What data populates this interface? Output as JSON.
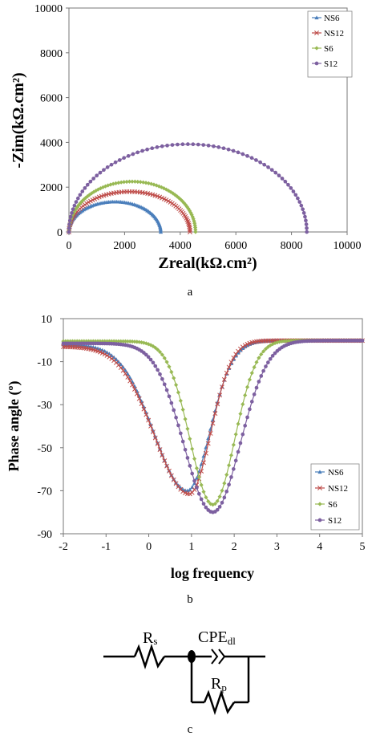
{
  "chart_data": [
    {
      "type": "scatter",
      "panel_label": "a",
      "xlabel": "Zreal(kΩ.cm²)",
      "ylabel": "-Zim(kΩ.cm²)",
      "xlim": [
        0,
        10000
      ],
      "ylim": [
        0,
        10000
      ],
      "xticks": [
        "0",
        "2000",
        "4000",
        "6000",
        "8000",
        "10000"
      ],
      "yticks": [
        "0",
        "2000",
        "4000",
        "6000",
        "8000",
        "10000"
      ],
      "grid": false,
      "legend_position": "top-right",
      "series": [
        {
          "name": "NS6",
          "color": "#4a7ebb",
          "marker": "triangle",
          "x_start": 0,
          "x_end": 3300,
          "peak_y": 1350
        },
        {
          "name": "NS12",
          "color": "#be4b48",
          "marker": "cross",
          "x_start": 0,
          "x_end": 4350,
          "peak_y": 1800
        },
        {
          "name": "S6",
          "color": "#98b954",
          "marker": "diamond",
          "x_start": 0,
          "x_end": 4550,
          "peak_y": 2250
        },
        {
          "name": "S12",
          "color": "#7d60a0",
          "marker": "circle",
          "x_start": 0,
          "x_end": 8550,
          "peak_y": 3920
        }
      ]
    },
    {
      "type": "line",
      "panel_label": "b",
      "xlabel": "log frequency",
      "ylabel": "Phase angle (º)",
      "xlim": [
        -2,
        5
      ],
      "ylim": [
        -90,
        10
      ],
      "xticks": [
        "-2",
        "-1",
        "0",
        "1",
        "2",
        "3",
        "4",
        "5"
      ],
      "yticks": [
        "10",
        "-10",
        "-30",
        "-50",
        "-70",
        "-90"
      ],
      "grid": false,
      "legend_position": "bottom-right",
      "series": [
        {
          "name": "NS6",
          "color": "#4a7ebb",
          "marker": "triangle",
          "start_y": -2,
          "min_y": -70,
          "min_x": 0.9,
          "end_y": -0.3,
          "width_low": 1.1,
          "width_high": 0.75
        },
        {
          "name": "NS12",
          "color": "#be4b48",
          "marker": "cross",
          "start_y": -3,
          "min_y": -71.5,
          "min_x": 0.95,
          "end_y": -0.2,
          "width_low": 1.15,
          "width_high": 0.7
        },
        {
          "name": "S6",
          "color": "#98b954",
          "marker": "diamond",
          "start_y": -0.5,
          "min_y": -76.5,
          "min_x": 1.5,
          "end_y": -0.1,
          "width_low": 0.75,
          "width_high": 0.72
        },
        {
          "name": "S12",
          "color": "#7d60a0",
          "marker": "circle",
          "start_y": -1.5,
          "min_y": -80,
          "min_x": 1.5,
          "end_y": -0.2,
          "width_low": 0.95,
          "width_high": 0.9
        }
      ]
    }
  ],
  "circuit": {
    "panel_label": "c",
    "resistor_s": {
      "main": "R",
      "sub": "s"
    },
    "cpe": {
      "main": "CPE",
      "sub": "dl"
    },
    "resistor_p": {
      "main": "R",
      "sub": "p"
    }
  }
}
